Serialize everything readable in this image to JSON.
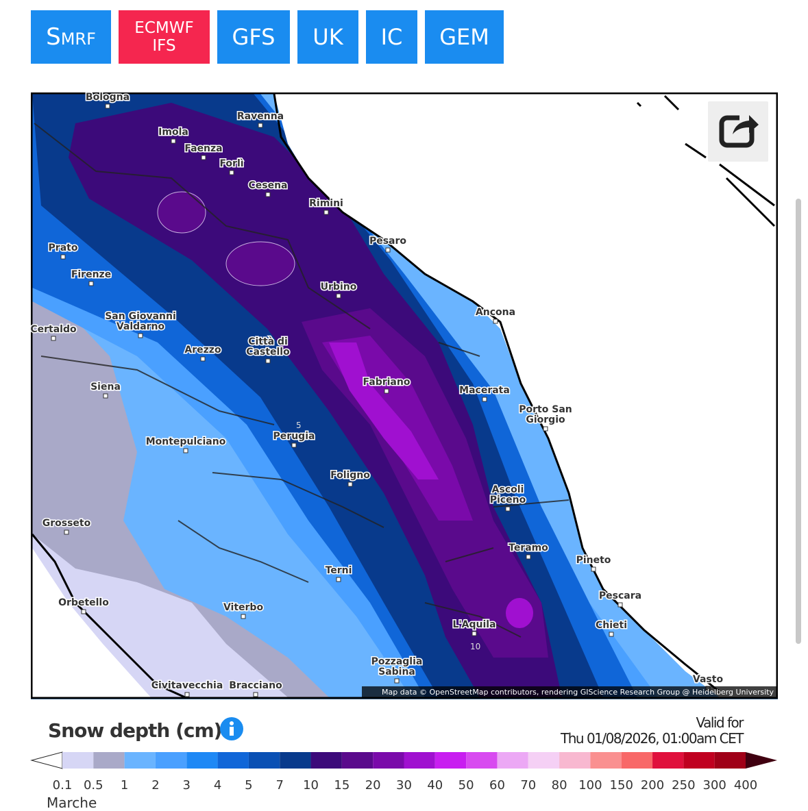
{
  "tabs": [
    "SMRF",
    "ECMWF IFS",
    "GFS",
    "UK",
    "IC",
    "GEM"
  ],
  "map": {
    "cities": [
      "Bologna",
      "Ravenna",
      "Imola",
      "Faenza",
      "Forlì",
      "Cesena",
      "Rimini",
      "Pesaro",
      "Urbino",
      "Ancona",
      "Prato",
      "Firenze",
      "San Giovanni Valdarno",
      "Certaldo",
      "Arezzo",
      "Città di Castello",
      "Fabriano",
      "Macerata",
      "Porto San Giorgio",
      "Siena",
      "Montepulciano",
      "Perugia",
      "Foligno",
      "Ascoli Piceno",
      "Grosseto",
      "Teramo",
      "Pineto",
      "Terni",
      "Pescara",
      "Orbetello",
      "Viterbo",
      "L'Aquila",
      "Chieti",
      "Pozzaglia Sabina",
      "Civitavecchia",
      "Bracciano",
      "Vasto"
    ],
    "contour_labels": [
      "5",
      "10"
    ],
    "attribution": "Map data © OpenStreetMap contributors, rendering GIScience Research Group @ Heidelberg University"
  },
  "legend": {
    "title": "Snow depth (cm)",
    "valid_label": "Valid for",
    "valid_time": "Thu 01/08/2026, 01:00am CET",
    "ticks": [
      0.1,
      0.5,
      1,
      2,
      3,
      4,
      5,
      7,
      10,
      15,
      20,
      30,
      40,
      50,
      60,
      70,
      80,
      100,
      150,
      200,
      250,
      300,
      400
    ],
    "colors": [
      "#d6d6f5",
      "#a9a9c8",
      "#6ab4ff",
      "#4aa0ff",
      "#1e88f5",
      "#1066d8",
      "#0a50b4",
      "#083a8c",
      "#3c0a7a",
      "#5a0a8c",
      "#7a0aaa",
      "#a010d0",
      "#c81ef0",
      "#d84af0",
      "#eca8f5",
      "#f5d0f5",
      "#f8b8d0",
      "#fa9090",
      "#f86868",
      "#e0103c",
      "#c00020",
      "#a00018"
    ],
    "under_color": "#ffffff",
    "over_color": "#400010"
  },
  "footer": "Marche"
}
